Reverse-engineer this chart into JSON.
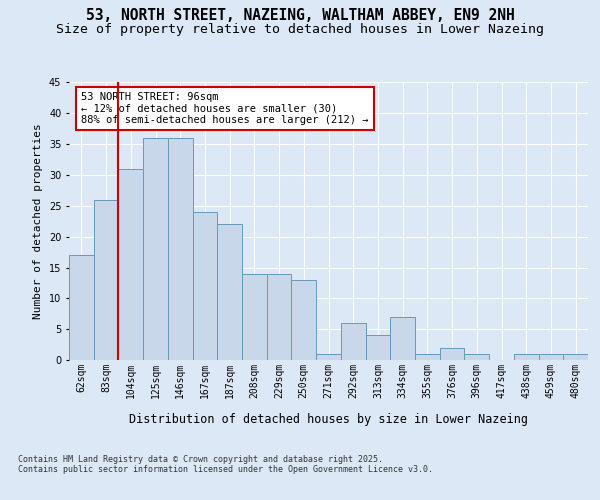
{
  "title_line1": "53, NORTH STREET, NAZEING, WALTHAM ABBEY, EN9 2NH",
  "title_line2": "Size of property relative to detached houses in Lower Nazeing",
  "xlabel": "Distribution of detached houses by size in Lower Nazeing",
  "ylabel": "Number of detached properties",
  "categories": [
    "62sqm",
    "83sqm",
    "104sqm",
    "125sqm",
    "146sqm",
    "167sqm",
    "187sqm",
    "208sqm",
    "229sqm",
    "250sqm",
    "271sqm",
    "292sqm",
    "313sqm",
    "334sqm",
    "355sqm",
    "376sqm",
    "396sqm",
    "417sqm",
    "438sqm",
    "459sqm",
    "480sqm"
  ],
  "values": [
    17,
    26,
    31,
    36,
    36,
    24,
    22,
    14,
    14,
    13,
    1,
    6,
    4,
    7,
    1,
    2,
    1,
    0,
    1,
    1,
    1
  ],
  "bar_color": "#c8d8ea",
  "bar_edge_color": "#6699bb",
  "vline_color": "#cc0000",
  "vline_x_idx": 1.5,
  "annotation_text": "53 NORTH STREET: 96sqm\n← 12% of detached houses are smaller (30)\n88% of semi-detached houses are larger (212) →",
  "annotation_box_color": "#cc0000",
  "background_color": "#dce8f5",
  "plot_bg_color": "#dce8f5",
  "grid_color": "#ffffff",
  "ylim": [
    0,
    45
  ],
  "yticks": [
    0,
    5,
    10,
    15,
    20,
    25,
    30,
    35,
    40,
    45
  ],
  "footer_text": "Contains HM Land Registry data © Crown copyright and database right 2025.\nContains public sector information licensed under the Open Government Licence v3.0.",
  "title_fontsize": 10.5,
  "subtitle_fontsize": 9.5,
  "axis_label_fontsize": 8.5,
  "tick_fontsize": 7,
  "annotation_fontsize": 7.5,
  "ylabel_fontsize": 8
}
